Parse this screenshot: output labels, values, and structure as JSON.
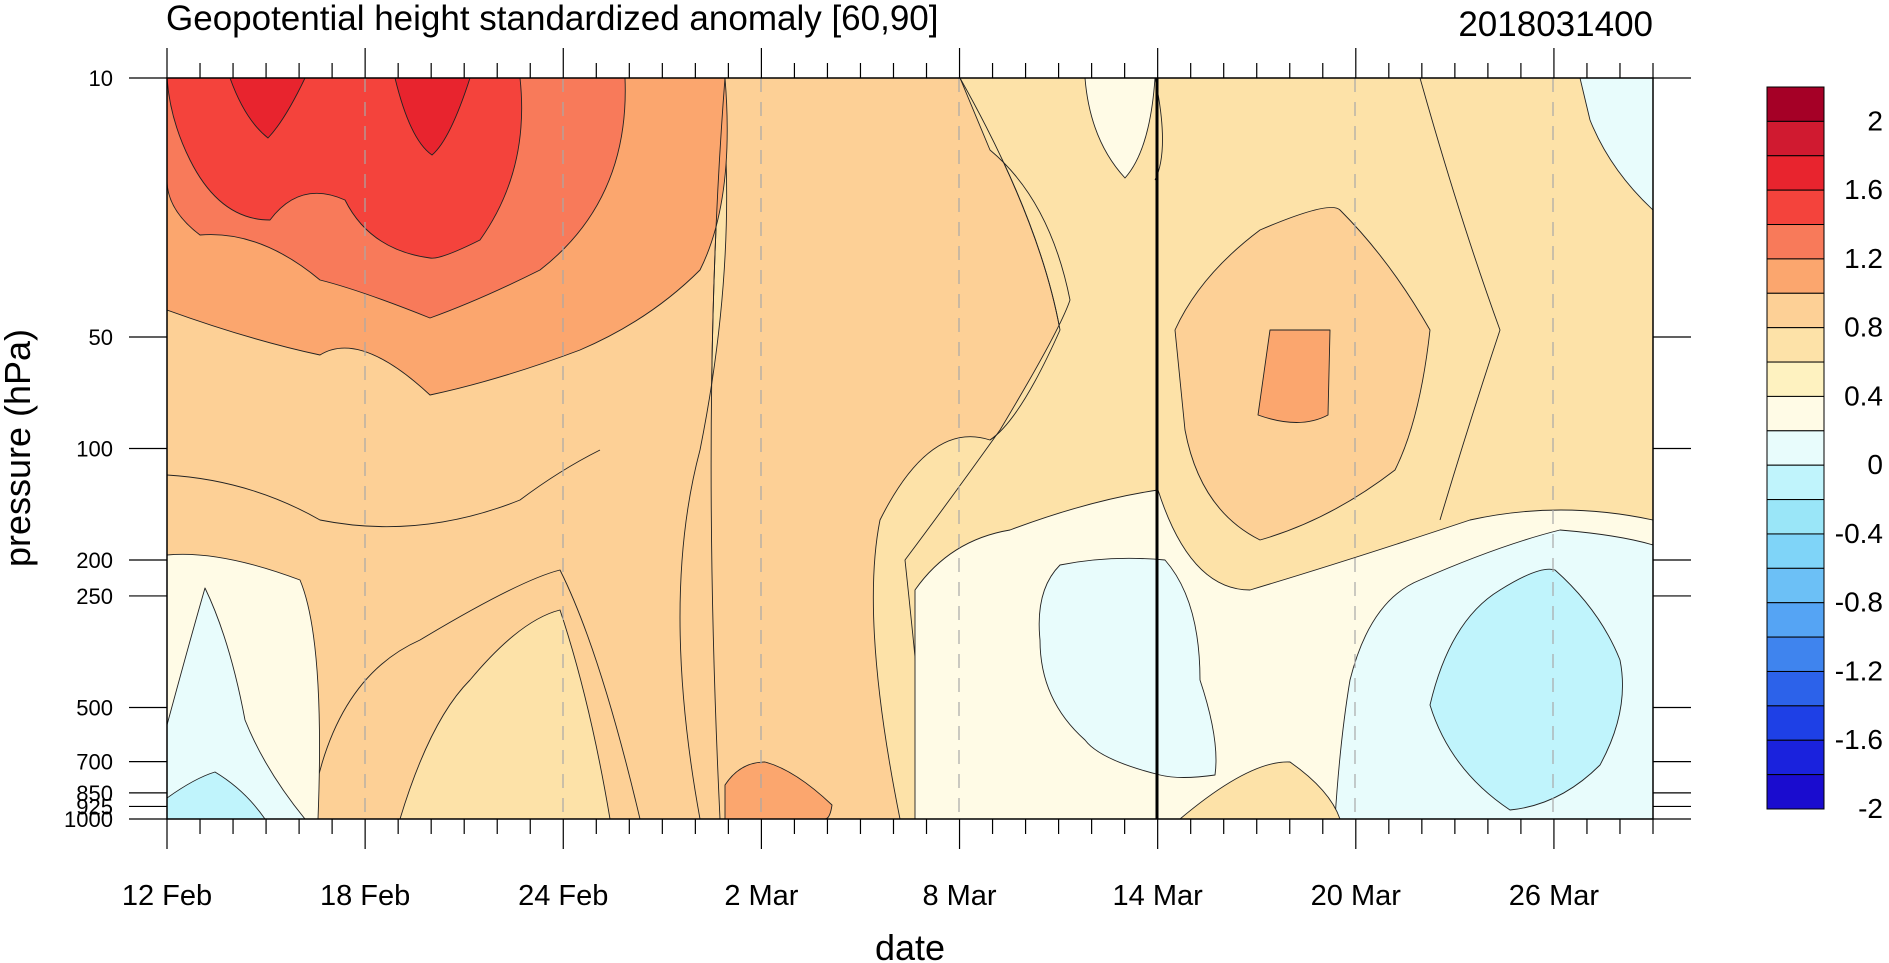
{
  "chart_data": {
    "type": "heatmap",
    "subtype": "filled-contour time-pressure cross-section",
    "title": "Geopotential height standardized anomaly [60,90]",
    "right_title": "2018031400",
    "xlabel": "date",
    "ylabel": "pressure (hPa)",
    "x_tick_labels": [
      "12 Feb",
      "18 Feb",
      "24 Feb",
      "2 Mar",
      "8 Mar",
      "14 Mar",
      "20 Mar",
      "26 Mar"
    ],
    "x_range_days_from_12_feb": [
      0,
      45
    ],
    "y_scale": "log",
    "y_reversed": true,
    "y_ticks": [
      10,
      50,
      100,
      200,
      250,
      500,
      700,
      850,
      925,
      1000
    ],
    "y_tick_labels": [
      "10",
      "50",
      "100",
      "200",
      "250",
      "500",
      "700",
      "850",
      "925",
      "1000"
    ],
    "ylim": [
      1000,
      10
    ],
    "vertical_marker": "14 Mar",
    "dashed_gridlines_at": [
      "18 Feb",
      "24 Feb",
      "2 Mar",
      "8 Mar",
      "20 Mar",
      "26 Mar"
    ],
    "colorbar": {
      "labels": [
        "2",
        "1.6",
        "1.2",
        "0.8",
        "0.4",
        "0",
        "-0.4",
        "-0.8",
        "-1.2",
        "-1.6",
        "-2"
      ],
      "levels": [
        2.0,
        1.8,
        1.6,
        1.4,
        1.2,
        1.0,
        0.8,
        0.6,
        0.4,
        0.2,
        0.0,
        -0.2,
        -0.4,
        -0.6,
        -0.8,
        -1.0,
        -1.2,
        -1.4,
        -1.6,
        -1.8,
        -2.0
      ],
      "colors": [
        "#a50026",
        "#d01a30",
        "#e8242e",
        "#f4433c",
        "#f87a5a",
        "#fba66e",
        "#fdd096",
        "#fde2a8",
        "#fef2c0",
        "#fffbe6",
        "#e8fcfc",
        "#c0f4fc",
        "#9ae6f8",
        "#7fd4f8",
        "#6cc0f6",
        "#55a4f4",
        "#3f84ee",
        "#2c62ea",
        "#1e40e6",
        "#1a22dd",
        "#1a0ccf"
      ]
    }
  }
}
